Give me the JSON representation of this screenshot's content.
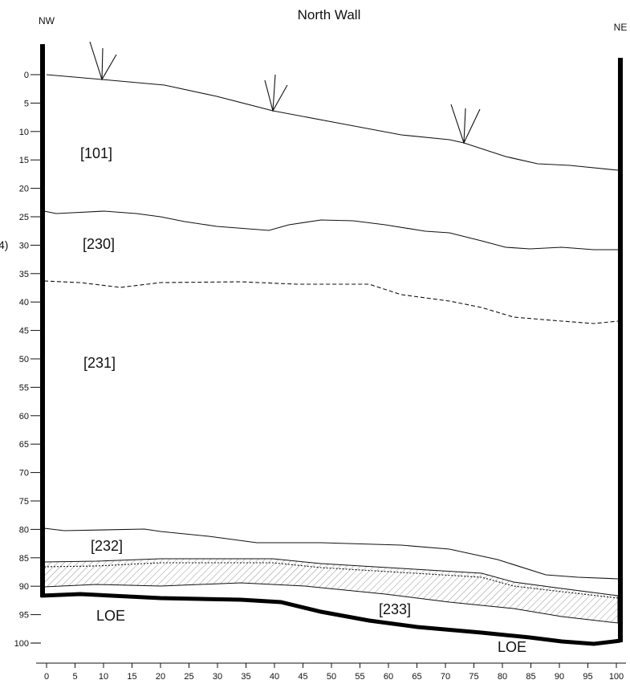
{
  "header": {
    "title": "North Wall",
    "left": "NW",
    "right": "NE",
    "margin_note": "4)"
  },
  "y_axis": {
    "labels": [
      "0",
      "5",
      "10",
      "15",
      "20",
      "25",
      "30",
      "35",
      "40",
      "45",
      "50",
      "55",
      "60",
      "65",
      "70",
      "75",
      "80",
      "85",
      "90",
      "95",
      "100"
    ]
  },
  "x_axis": {
    "labels": [
      "0",
      "5",
      "10",
      "15",
      "20",
      "25",
      "30",
      "35",
      "40",
      "45",
      "50",
      "55",
      "60",
      "65",
      "70",
      "75",
      "80",
      "85",
      "90",
      "95",
      "100"
    ]
  },
  "layers": [
    {
      "label": "[101]"
    },
    {
      "label": "[230]"
    },
    {
      "label": "[231]"
    },
    {
      "label": "[232]"
    },
    {
      "label": "[233]"
    }
  ],
  "limits": [
    {
      "label": "LOE"
    },
    {
      "label": "LOE"
    }
  ]
}
